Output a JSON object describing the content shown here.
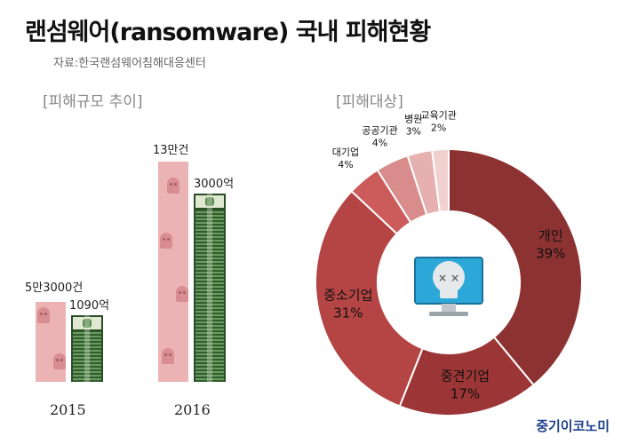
{
  "title": "랜섬웨어(ransomware) 국내 피해현황",
  "source": "자료:한국랜섬웨어침해대응센터",
  "left_section": "[피해규모 추이]",
  "right_section": "[피해대상]",
  "brand": "중기이코노미",
  "chart_data": [
    {
      "type": "bar",
      "categories": [
        "2015",
        "2016"
      ],
      "series": [
        {
          "values": [
            53000,
            130000
          ],
          "labels": [
            "5만3000건",
            "13만건"
          ]
        },
        {
          "values": [
            1090,
            3000
          ],
          "labels": [
            "1090억",
            "3000억"
          ]
        }
      ],
      "colors": {
        "cases": "#ecb3b5",
        "money": "#3f6f3a"
      }
    },
    {
      "type": "pie",
      "slices": [
        {
          "label": "개인",
          "value": 39,
          "pct": "39%",
          "color": "#8d3232"
        },
        {
          "label": "중견기업",
          "value": 17,
          "pct": "17%",
          "color": "#9c3636"
        },
        {
          "label": "중소기업",
          "value": 31,
          "pct": "31%",
          "color": "#b54545"
        },
        {
          "label": "대기업",
          "value": 4,
          "pct": "4%",
          "color": "#cc5b5b"
        },
        {
          "label": "공공기관",
          "value": 4,
          "pct": "4%",
          "color": "#d88c8c"
        },
        {
          "label": "병원",
          "value": 3,
          "pct": "3%",
          "color": "#e6b0b0"
        },
        {
          "label": "교육기관",
          "value": 2,
          "pct": "2%",
          "color": "#f1d0d0"
        }
      ],
      "center_icon": "skull-computer-icon"
    }
  ]
}
